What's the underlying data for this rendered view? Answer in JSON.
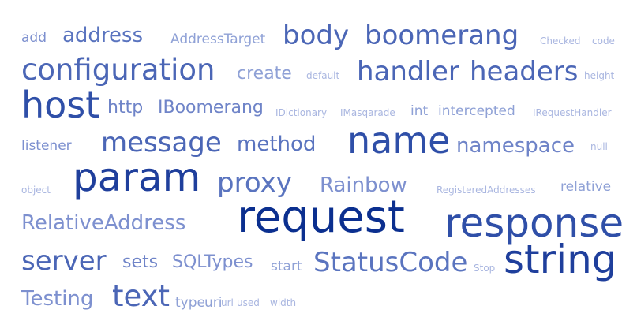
{
  "palette": {
    "background": "#ffffff",
    "darkest": "#0b2f8f",
    "dark": "#2f4fa8",
    "mid": "#5a74bf",
    "light": "#8fa1d6",
    "lightest": "#a9b6e0"
  },
  "words": [
    {
      "text": "add",
      "weight": 2,
      "color": "#7d90cf"
    },
    {
      "text": "address",
      "weight": 4,
      "color": "#5a74bf"
    },
    {
      "text": "AddressTarget",
      "weight": 2,
      "color": "#8fa1d6"
    },
    {
      "text": "body",
      "weight": 5,
      "color": "#4b66b6"
    },
    {
      "text": "boomerang",
      "weight": 5,
      "color": "#4b66b6"
    },
    {
      "text": "Checked",
      "weight": 1,
      "color": "#a9b6e0"
    },
    {
      "text": "code",
      "weight": 1,
      "color": "#a9b6e0"
    },
    {
      "text": "configuration",
      "weight": 6,
      "color": "#4b66b6"
    },
    {
      "text": "create",
      "weight": 3,
      "color": "#8fa1d6"
    },
    {
      "text": "default",
      "weight": 1,
      "color": "#a9b6e0"
    },
    {
      "text": "handler",
      "weight": 5,
      "color": "#4b66b6"
    },
    {
      "text": "headers",
      "weight": 5,
      "color": "#4b66b6"
    },
    {
      "text": "height",
      "weight": 1,
      "color": "#a9b6e0"
    },
    {
      "text": "host",
      "weight": 7,
      "color": "#2f4fa8"
    },
    {
      "text": "http",
      "weight": 3,
      "color": "#6f84c8"
    },
    {
      "text": "IBoomerang",
      "weight": 3,
      "color": "#6f84c8"
    },
    {
      "text": "IDictionary",
      "weight": 1,
      "color": "#a9b6e0"
    },
    {
      "text": "IMasqarade",
      "weight": 1,
      "color": "#a9b6e0"
    },
    {
      "text": "int",
      "weight": 2,
      "color": "#8fa1d6"
    },
    {
      "text": "intercepted",
      "weight": 2,
      "color": "#8fa1d6"
    },
    {
      "text": "IRequestHandler",
      "weight": 1,
      "color": "#a9b6e0"
    },
    {
      "text": "listener",
      "weight": 2,
      "color": "#7d90cf"
    },
    {
      "text": "message",
      "weight": 5,
      "color": "#4b66b6"
    },
    {
      "text": "method",
      "weight": 4,
      "color": "#5a74bf"
    },
    {
      "text": "name",
      "weight": 7,
      "color": "#2f4fa8"
    },
    {
      "text": "namespace",
      "weight": 4,
      "color": "#6f84c8"
    },
    {
      "text": "null",
      "weight": 1,
      "color": "#a9b6e0"
    },
    {
      "text": "object",
      "weight": 1,
      "color": "#a9b6e0"
    },
    {
      "text": "param",
      "weight": 8,
      "color": "#1f3f9c"
    },
    {
      "text": "proxy",
      "weight": 5,
      "color": "#5a74bf"
    },
    {
      "text": "Rainbow",
      "weight": 4,
      "color": "#7d90cf"
    },
    {
      "text": "RegisteredAddresses",
      "weight": 1,
      "color": "#a9b6e0"
    },
    {
      "text": "relative",
      "weight": 2,
      "color": "#8fa1d6"
    },
    {
      "text": "RelativeAddress",
      "weight": 4,
      "color": "#7d90cf"
    },
    {
      "text": "request",
      "weight": 9,
      "color": "#0b2f8f"
    },
    {
      "text": "response",
      "weight": 8,
      "color": "#2f4fa8"
    },
    {
      "text": "server",
      "weight": 5,
      "color": "#4b66b6"
    },
    {
      "text": "sets",
      "weight": 3,
      "color": "#6f84c8"
    },
    {
      "text": "SQLTypes",
      "weight": 3,
      "color": "#7d90cf"
    },
    {
      "text": "start",
      "weight": 2,
      "color": "#8fa1d6"
    },
    {
      "text": "StatusCode",
      "weight": 5,
      "color": "#5a74bf"
    },
    {
      "text": "Stop",
      "weight": 1,
      "color": "#a9b6e0"
    },
    {
      "text": "string",
      "weight": 8,
      "color": "#1f3f9c"
    },
    {
      "text": "Testing",
      "weight": 4,
      "color": "#7d90cf"
    },
    {
      "text": "text",
      "weight": 6,
      "color": "#4b66b6"
    },
    {
      "text": "type",
      "weight": 2,
      "color": "#8fa1d6"
    },
    {
      "text": "uri",
      "weight": 2,
      "color": "#8fa1d6"
    },
    {
      "text": "url",
      "weight": 1,
      "color": "#a9b6e0"
    },
    {
      "text": "used",
      "weight": 1,
      "color": "#a9b6e0"
    },
    {
      "text": "width",
      "weight": 1,
      "color": "#a9b6e0"
    }
  ]
}
